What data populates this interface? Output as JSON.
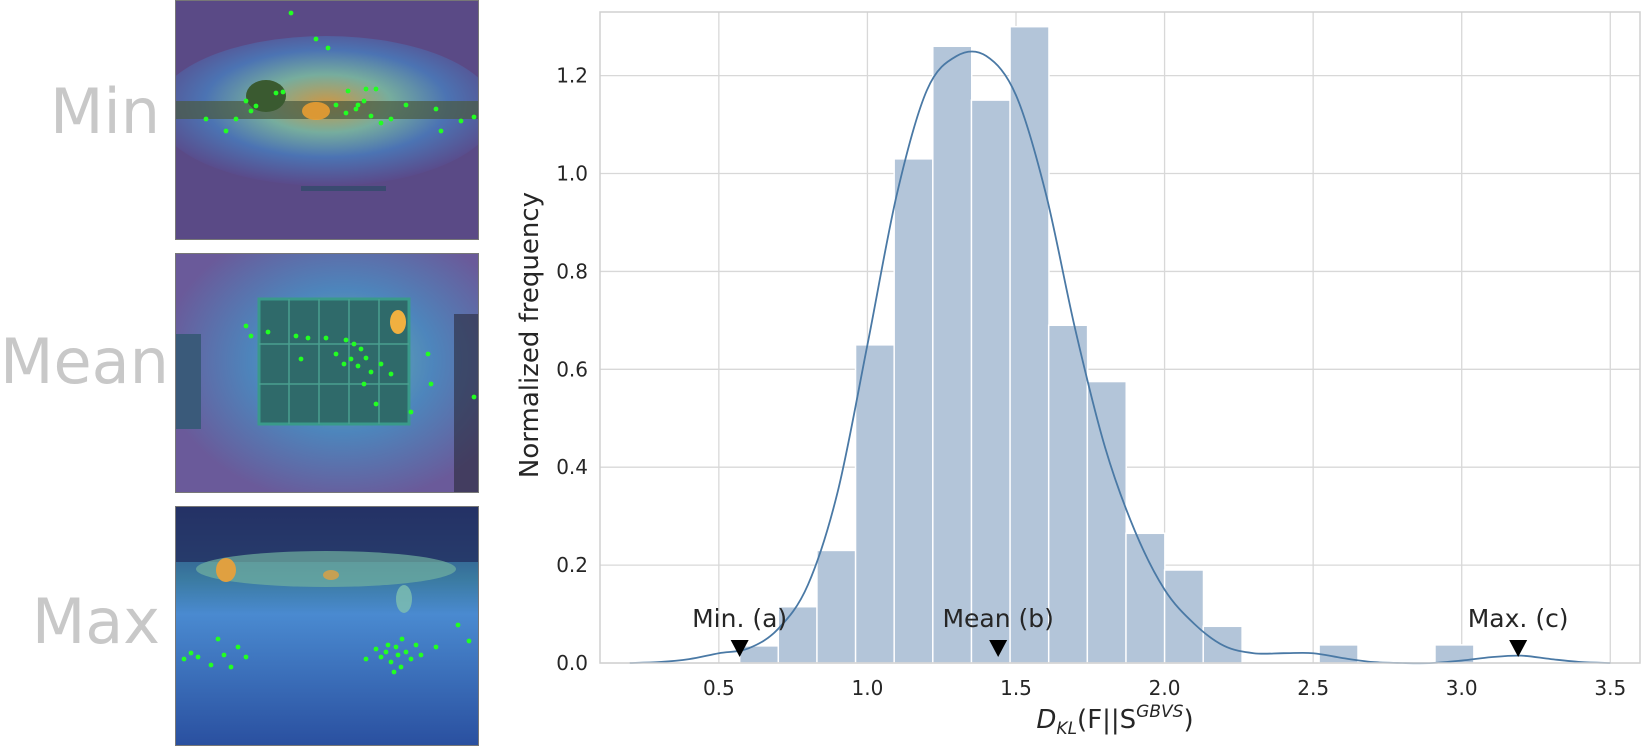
{
  "panels": [
    {
      "label": "Min"
    },
    {
      "label": "Mean"
    },
    {
      "label": "Max"
    }
  ],
  "colors": {
    "bar": "#b3c5d9",
    "kde": "#4a79a5",
    "grid": "#d8d8d8",
    "label_gray": "#c8c8c8",
    "fixation": "#22ff22"
  },
  "chart_data": {
    "type": "bar",
    "xlabel_parts": {
      "main": "D",
      "sub": "KL",
      "mid": "(F||S",
      "sup": "GBVS",
      "end": ")"
    },
    "ylabel": "Normalized frequency",
    "xlim": [
      0.1,
      3.6
    ],
    "ylim": [
      0.0,
      1.33
    ],
    "xticks": [
      "0.5",
      "1.0",
      "1.5",
      "2.0",
      "2.5",
      "3.0",
      "3.5"
    ],
    "yticks": [
      "0.0",
      "0.2",
      "0.4",
      "0.6",
      "0.8",
      "1.0",
      "1.2"
    ],
    "grid": true,
    "bin_width": 0.131,
    "bins": [
      {
        "x0": 0.57,
        "value": 0.035
      },
      {
        "x0": 0.7,
        "value": 0.115
      },
      {
        "x0": 0.83,
        "value": 0.23
      },
      {
        "x0": 0.96,
        "value": 0.65
      },
      {
        "x0": 1.09,
        "value": 1.03
      },
      {
        "x0": 1.22,
        "value": 1.26
      },
      {
        "x0": 1.35,
        "value": 1.15
      },
      {
        "x0": 1.48,
        "value": 1.3
      },
      {
        "x0": 1.61,
        "value": 0.69
      },
      {
        "x0": 1.74,
        "value": 0.575
      },
      {
        "x0": 1.87,
        "value": 0.265
      },
      {
        "x0": 2.0,
        "value": 0.19
      },
      {
        "x0": 2.13,
        "value": 0.075
      },
      {
        "x0": 2.52,
        "value": 0.037
      },
      {
        "x0": 2.91,
        "value": 0.037
      }
    ],
    "kde": {
      "x": [
        0.2,
        0.3,
        0.4,
        0.5,
        0.6,
        0.7,
        0.8,
        0.9,
        1.0,
        1.1,
        1.2,
        1.3,
        1.4,
        1.5,
        1.6,
        1.7,
        1.8,
        1.9,
        2.0,
        2.1,
        2.2,
        2.3,
        2.4,
        2.5,
        2.6,
        2.7,
        2.8,
        2.9,
        3.0,
        3.1,
        3.2,
        3.3,
        3.4,
        3.5
      ],
      "y": [
        0.0,
        0.002,
        0.008,
        0.02,
        0.03,
        0.07,
        0.16,
        0.35,
        0.65,
        0.96,
        1.17,
        1.24,
        1.24,
        1.16,
        0.96,
        0.68,
        0.44,
        0.27,
        0.15,
        0.08,
        0.035,
        0.02,
        0.02,
        0.02,
        0.01,
        0.002,
        0.0,
        0.0,
        0.005,
        0.012,
        0.015,
        0.008,
        0.002,
        0.0
      ]
    },
    "annotations": [
      {
        "text": "Min. (a)",
        "x": 0.57
      },
      {
        "text": "Mean (b)",
        "x": 1.44
      },
      {
        "text": "Max. (c)",
        "x": 3.19
      }
    ]
  }
}
